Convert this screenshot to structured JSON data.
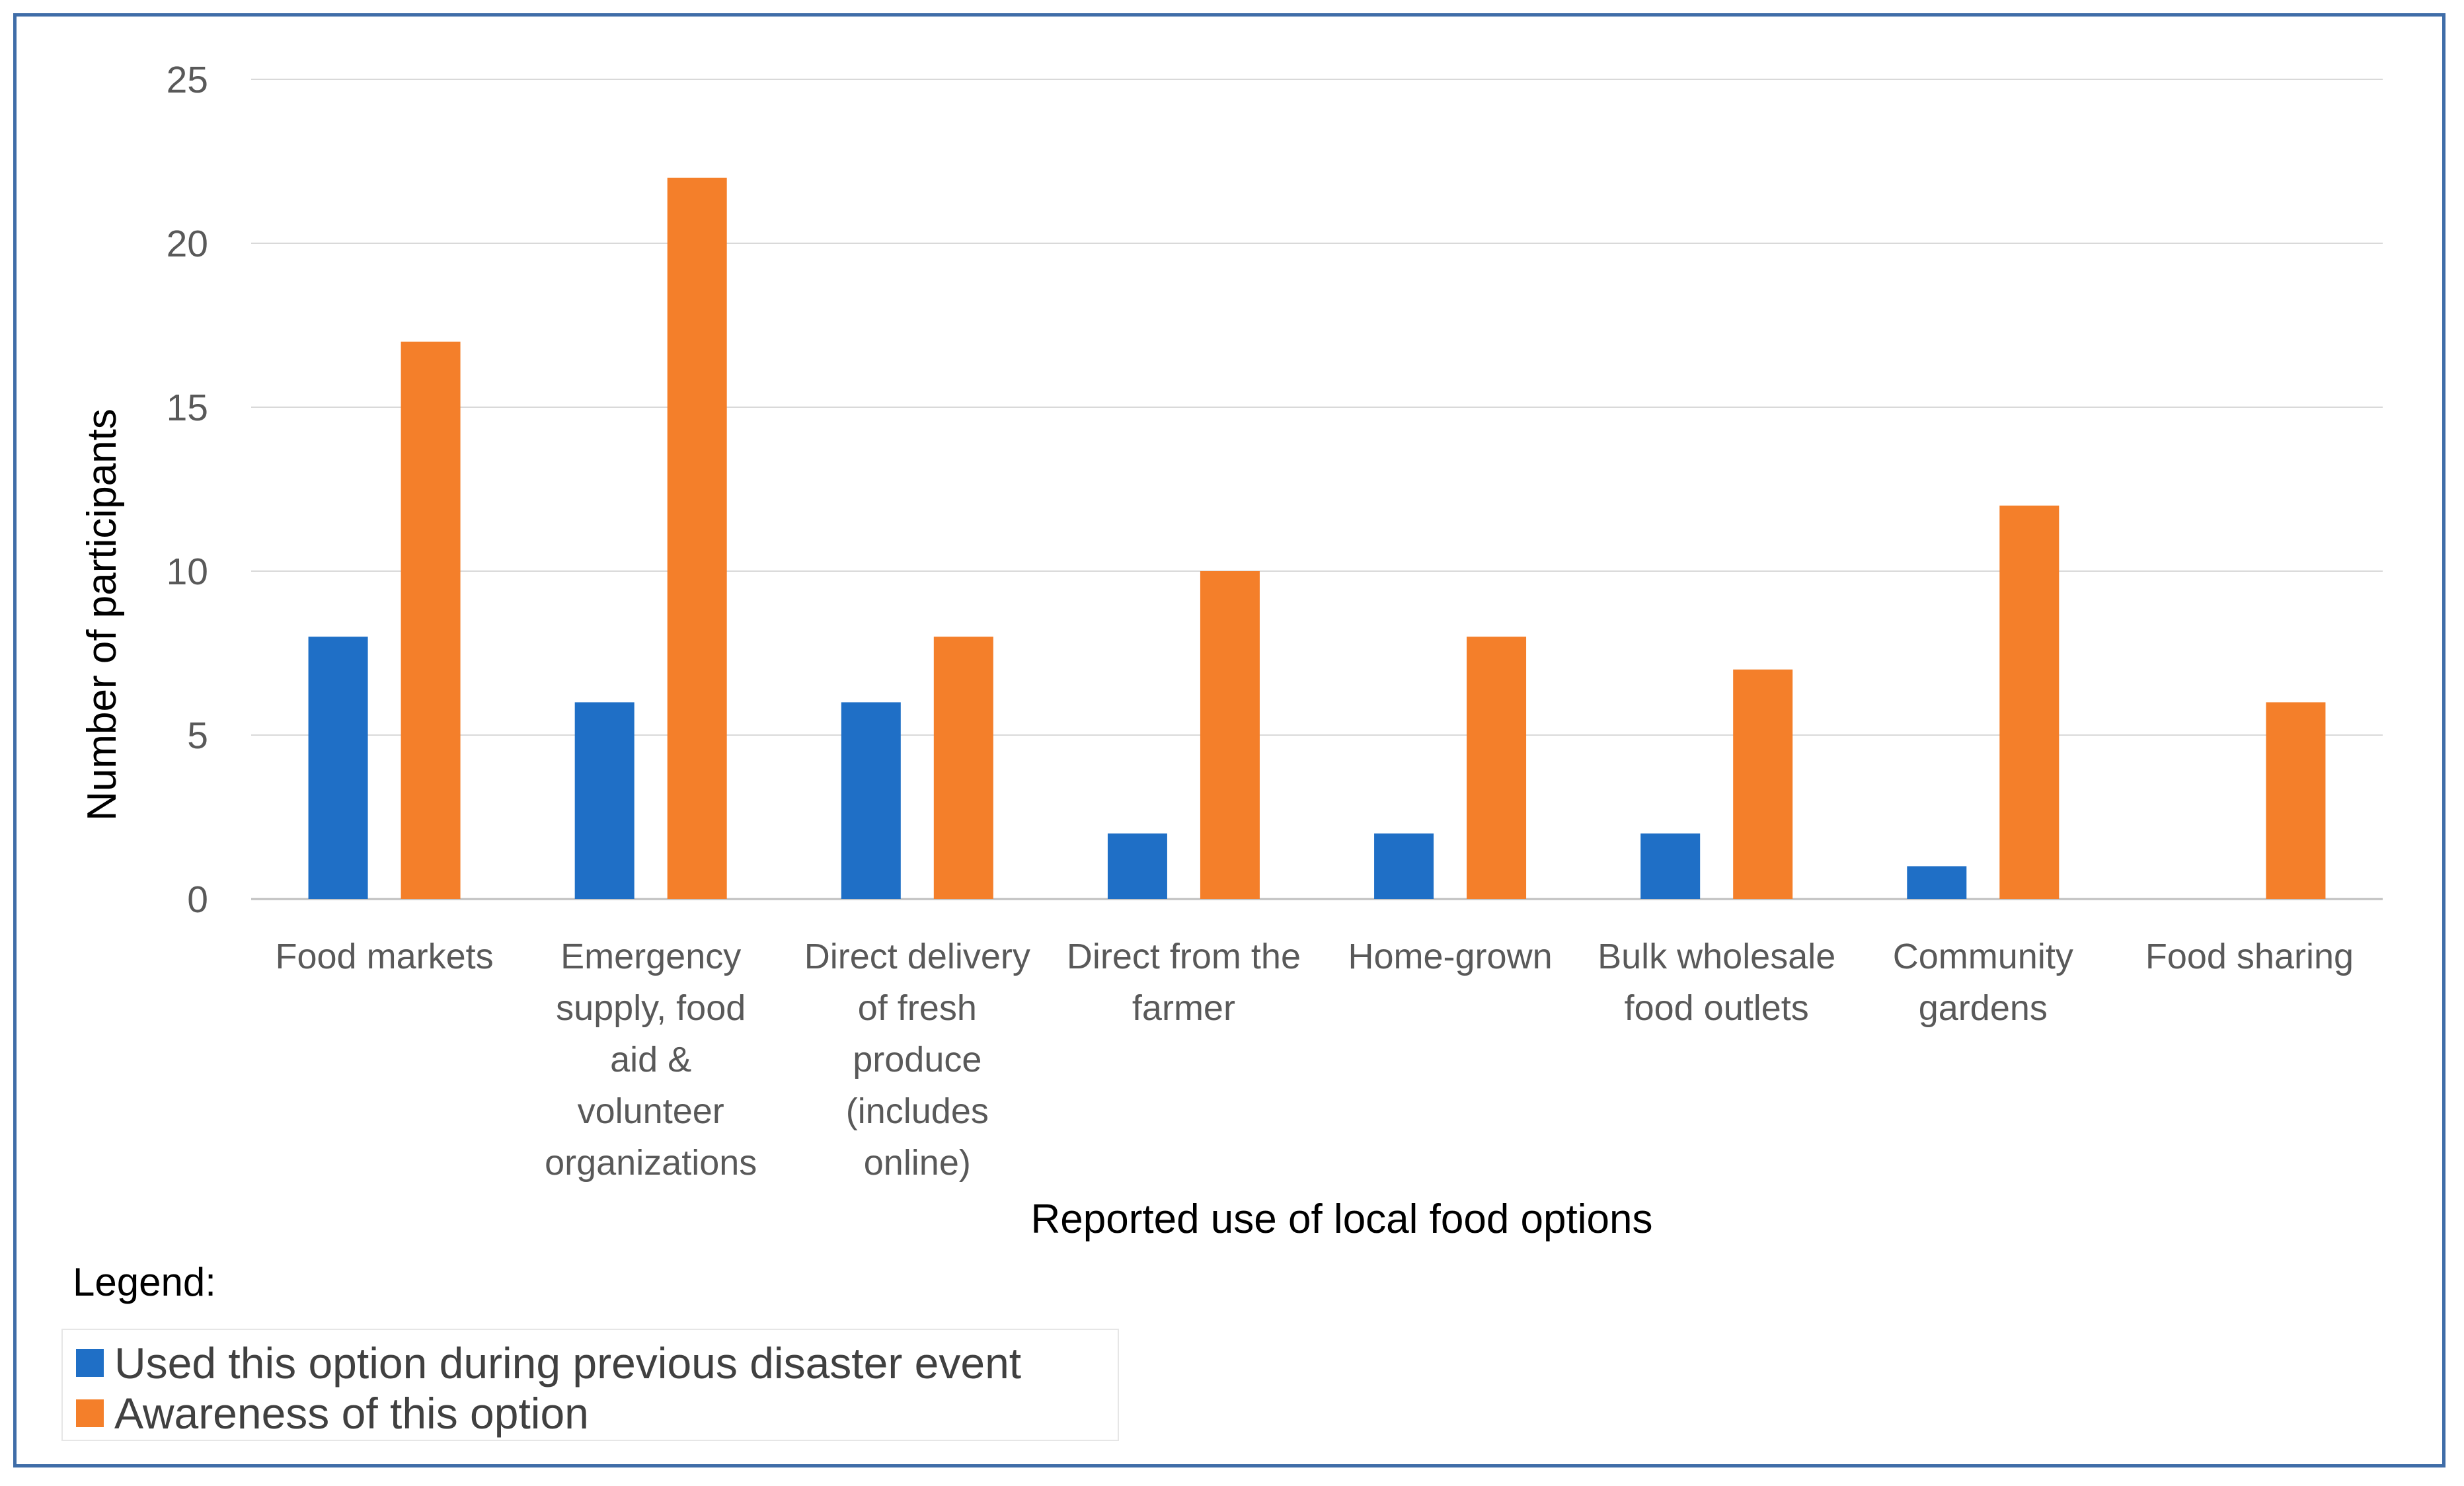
{
  "chart_data": {
    "type": "bar",
    "title": "",
    "xlabel": "Reported use of local food options",
    "ylabel": "Number of participants",
    "ylim": [
      0,
      25
    ],
    "yticks": [
      0,
      5,
      10,
      15,
      20,
      25
    ],
    "grid": true,
    "categories": [
      [
        "Food markets"
      ],
      [
        "Emergency",
        "supply, food",
        "aid &",
        "volunteer",
        "organizations"
      ],
      [
        "Direct delivery",
        "of fresh",
        "produce",
        "(includes",
        "online)"
      ],
      [
        "Direct from the",
        "farmer"
      ],
      [
        "Home-grown"
      ],
      [
        "Bulk wholesale",
        "food outlets"
      ],
      [
        "Community",
        "gardens"
      ],
      [
        "Food sharing"
      ]
    ],
    "series": [
      {
        "name": "Used this option during previous disaster event",
        "color": "#1f6fc6",
        "values": [
          8,
          6,
          6,
          2,
          2,
          2,
          1,
          0
        ]
      },
      {
        "name": "Awareness of this option",
        "color": "#f47f2a",
        "values": [
          17,
          22,
          8,
          10,
          8,
          7,
          12,
          6
        ]
      }
    ]
  },
  "legend": {
    "title": "Legend:",
    "items": [
      {
        "label": "Used this option during previous disaster event",
        "color": "#1f6fc6"
      },
      {
        "label": "Awareness of this option",
        "color": "#f47f2a"
      }
    ]
  }
}
